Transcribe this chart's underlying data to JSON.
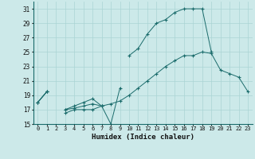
{
  "xlabel": "Humidex (Indice chaleur)",
  "background_color": "#cce9e9",
  "grid_color": "#aad4d4",
  "line_color": "#1a6b6b",
  "x_values": [
    0,
    1,
    2,
    3,
    4,
    5,
    6,
    7,
    8,
    9,
    10,
    11,
    12,
    13,
    14,
    15,
    16,
    17,
    18,
    19,
    20,
    21,
    22,
    23
  ],
  "series_low": [
    18,
    19.5,
    null,
    16.5,
    17,
    17,
    17,
    17.5,
    15,
    20,
    null,
    null,
    null,
    null,
    null,
    null,
    null,
    null,
    null,
    null,
    null,
    null,
    null,
    null
  ],
  "series_mid": [
    18,
    19.5,
    null,
    17,
    17.2,
    17.5,
    17.8,
    17.5,
    17.8,
    18.2,
    19,
    20,
    21,
    22,
    23,
    23.8,
    24.5,
    24.5,
    25,
    24.8,
    22.5,
    22,
    21.5,
    19.5
  ],
  "series_high": [
    18,
    19.5,
    null,
    17,
    17.5,
    18,
    18.5,
    17.5,
    null,
    null,
    24.5,
    25.5,
    27.5,
    29,
    29.5,
    30.5,
    31,
    31,
    31,
    25,
    null,
    null,
    null,
    null
  ],
  "ylim": [
    15,
    32
  ],
  "xlim": [
    -0.5,
    23.5
  ],
  "yticks": [
    15,
    17,
    19,
    21,
    23,
    25,
    27,
    29,
    31
  ],
  "xticks": [
    0,
    1,
    2,
    3,
    4,
    5,
    6,
    7,
    8,
    9,
    10,
    11,
    12,
    13,
    14,
    15,
    16,
    17,
    18,
    19,
    20,
    21,
    22,
    23
  ],
  "figsize": [
    3.2,
    2.0
  ],
  "dpi": 100
}
